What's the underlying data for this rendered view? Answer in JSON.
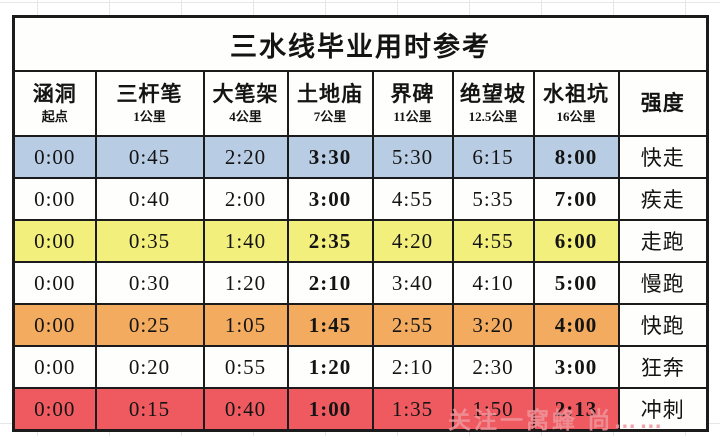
{
  "chart_data": {
    "type": "table",
    "title": "三水线毕业用时参考",
    "columns": [
      {
        "name": "涵洞",
        "sub": "起点"
      },
      {
        "name": "三杆笔",
        "sub": "1公里"
      },
      {
        "name": "大笔架",
        "sub": "4公里"
      },
      {
        "name": "土地庙",
        "sub": "7公里"
      },
      {
        "name": "界碑",
        "sub": "11公里"
      },
      {
        "name": "绝望坡",
        "sub": "12.5公里"
      },
      {
        "name": "水祖坑",
        "sub": "16公里"
      },
      {
        "name": "强度",
        "sub": ""
      }
    ],
    "bold_time_columns": [
      3,
      6
    ],
    "rows": [
      {
        "times": [
          "0:00",
          "0:45",
          "2:20",
          "3:30",
          "5:30",
          "6:15",
          "8:00"
        ],
        "strength": "快走",
        "row_color": "#b8cce4"
      },
      {
        "times": [
          "0:00",
          "0:40",
          "2:00",
          "3:00",
          "4:55",
          "5:35",
          "7:00"
        ],
        "strength": "疾走",
        "row_color": "#fefefc"
      },
      {
        "times": [
          "0:00",
          "0:35",
          "1:40",
          "2:35",
          "4:20",
          "4:55",
          "6:00"
        ],
        "strength": "走跑",
        "row_color": "#f3ef7d"
      },
      {
        "times": [
          "0:00",
          "0:30",
          "1:20",
          "2:10",
          "3:40",
          "4:10",
          "5:00"
        ],
        "strength": "慢跑",
        "row_color": "#fefefc"
      },
      {
        "times": [
          "0:00",
          "0:25",
          "1:05",
          "1:45",
          "2:55",
          "3:20",
          "4:00"
        ],
        "strength": "快跑",
        "row_color": "#f2ab5f"
      },
      {
        "times": [
          "0:00",
          "0:20",
          "0:55",
          "1:20",
          "2:10",
          "2:30",
          "3:00"
        ],
        "strength": "狂奔",
        "row_color": "#fefefc"
      },
      {
        "times": [
          "0:00",
          "0:15",
          "0:40",
          "1:00",
          "1:35",
          "1:50",
          "2:13"
        ],
        "strength": "冲刺",
        "row_color": "#ee5a5f"
      }
    ]
  },
  "watermark": "关注一窝蜂 尚……"
}
